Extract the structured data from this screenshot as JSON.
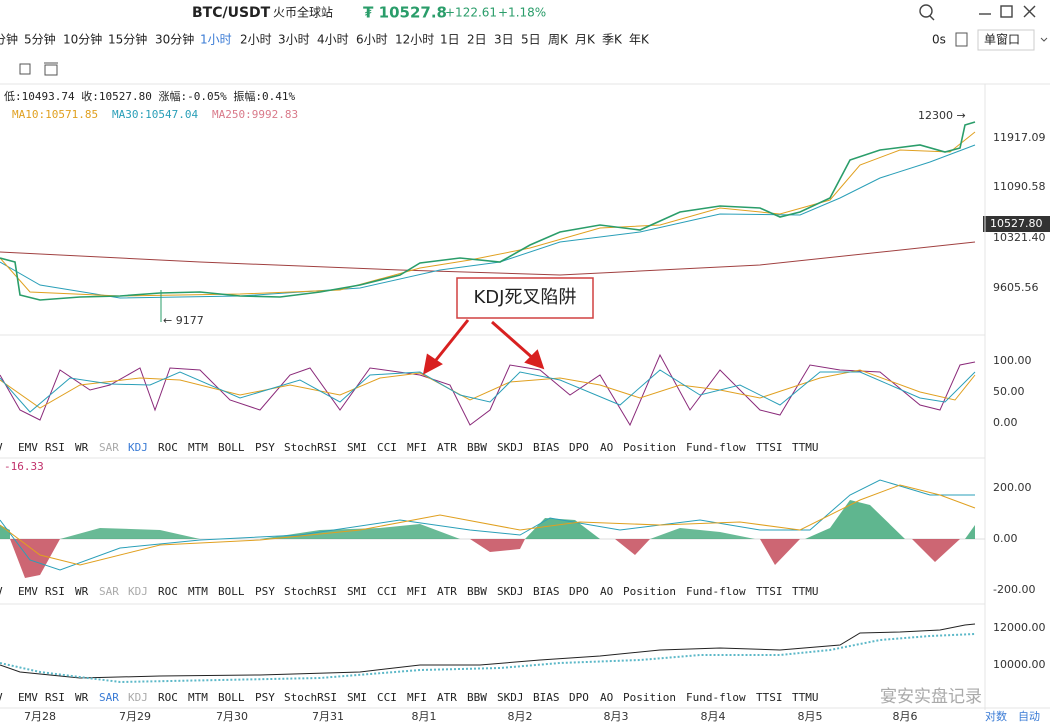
{
  "header": {
    "symbol": "BTC/USDT",
    "exchange": "火币全球站",
    "price": "₮ 10527.8",
    "change": "+122.61",
    "change_pct": "+1.18%"
  },
  "timeframes": [
    "分钟",
    "5分钟",
    "10分钟",
    "15分钟",
    "30分钟",
    "1小时",
    "2小时",
    "3小时",
    "4小时",
    "6小时",
    "12小时",
    "1日",
    "2日",
    "3日",
    "5日",
    "周K",
    "月K",
    "季K",
    "年K"
  ],
  "active_timeframe": "1小时",
  "toolbar": {
    "delay": "0s",
    "window": "单窗口"
  },
  "info": {
    "line1": "低:10493.74  收:10527.80  涨幅:-0.05%  振幅:0.41%",
    "ma10": "MA10:10571.85",
    "ma30": "MA30:10547.04",
    "ma250": "MA250:9992.83"
  },
  "main_axis": [
    "11917.09",
    "11090.58",
    "10321.40",
    "9605.56"
  ],
  "current_price": "10527.80",
  "annotations": {
    "high": "12300 →",
    "low": "← 9177"
  },
  "callout": "KDJ死叉陷阱",
  "kdj_axis": [
    "100.00",
    "50.00",
    "0.00"
  ],
  "macd_value": "-16.33",
  "macd_axis": [
    "200.00",
    "0.00",
    "-200.00"
  ],
  "bottom_axis": [
    "12000.00",
    "10000.00"
  ],
  "indicator_tabs": [
    "V",
    "EMV",
    "RSI",
    "WR",
    "SAR",
    "KDJ",
    "ROC",
    "MTM",
    "BOLL",
    "PSY",
    "StochRSI",
    "SMI",
    "CCI",
    "MFI",
    "ATR",
    "BBW",
    "SKDJ",
    "BIAS",
    "DPO",
    "AO",
    "Position",
    "Fund-flow",
    "TTSI",
    "TTMU"
  ],
  "tab_rows": [
    {
      "active": "KDJ",
      "muted": "SAR"
    },
    {
      "active": null,
      "muted": "SAR KDJ"
    },
    {
      "active": "SAR",
      "muted": "KDJ"
    }
  ],
  "dates": [
    "7月28",
    "7月29",
    "7月30",
    "7月31",
    "8月1",
    "8月2",
    "8月3",
    "8月4",
    "8月5",
    "8月6"
  ],
  "watermark": "宴安实盘记录",
  "footer": [
    "对数",
    "自动"
  ]
}
